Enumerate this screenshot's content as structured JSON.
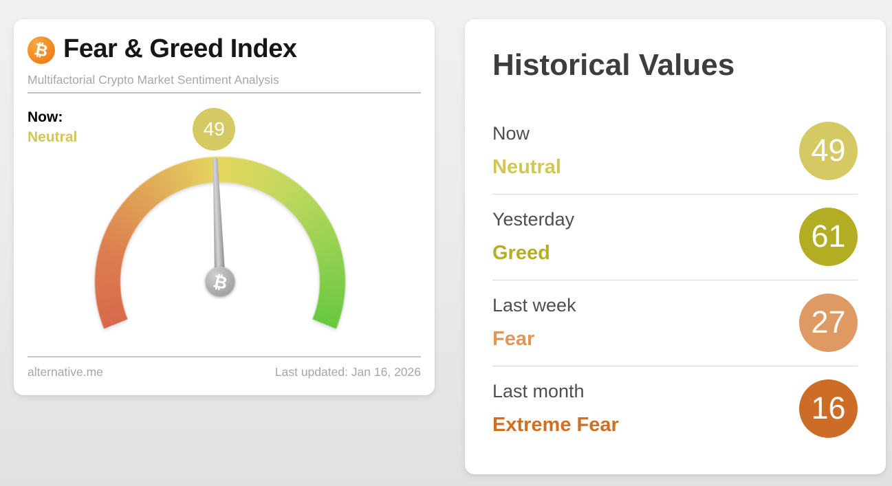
{
  "page_background": "#eaeaea",
  "left_card": {
    "title": "Fear & Greed Index",
    "subtitle": "Multifactorial Crypto Market Sentiment Analysis",
    "now_label": "Now:",
    "source": "alternative.me",
    "last_updated": "Last updated: Jan 16, 2026",
    "bitcoin_icon_color": "#f2891d"
  },
  "chart_data": {
    "type": "gauge",
    "title": "Fear & Greed Index",
    "min": 0,
    "max": 100,
    "arc_span_degrees": 224,
    "value": 49,
    "classification": "Neutral",
    "classification_color": "#d3c556",
    "badge_color": "#d5c963",
    "needle_color": "#a9a9a9",
    "scale_colors": [
      "#d7694c",
      "#dd7e4f",
      "#e0a857",
      "#e5d75f",
      "#c0d75e",
      "#93d151",
      "#68c83f"
    ],
    "history": [
      {
        "label": "Now",
        "classification": "Neutral",
        "value": 49,
        "color": "#d5c963",
        "text_color": "#d3c556"
      },
      {
        "label": "Yesterday",
        "classification": "Greed",
        "value": 61,
        "color": "#b2ad23",
        "text_color": "#b4af25"
      },
      {
        "label": "Last week",
        "classification": "Fear",
        "value": 27,
        "color": "#de9a62",
        "text_color": "#e0955b"
      },
      {
        "label": "Last month",
        "classification": "Extreme Fear",
        "value": 16,
        "color": "#cc6c26",
        "text_color": "#d06f22"
      }
    ]
  },
  "right_card": {
    "title": "Historical Values"
  }
}
